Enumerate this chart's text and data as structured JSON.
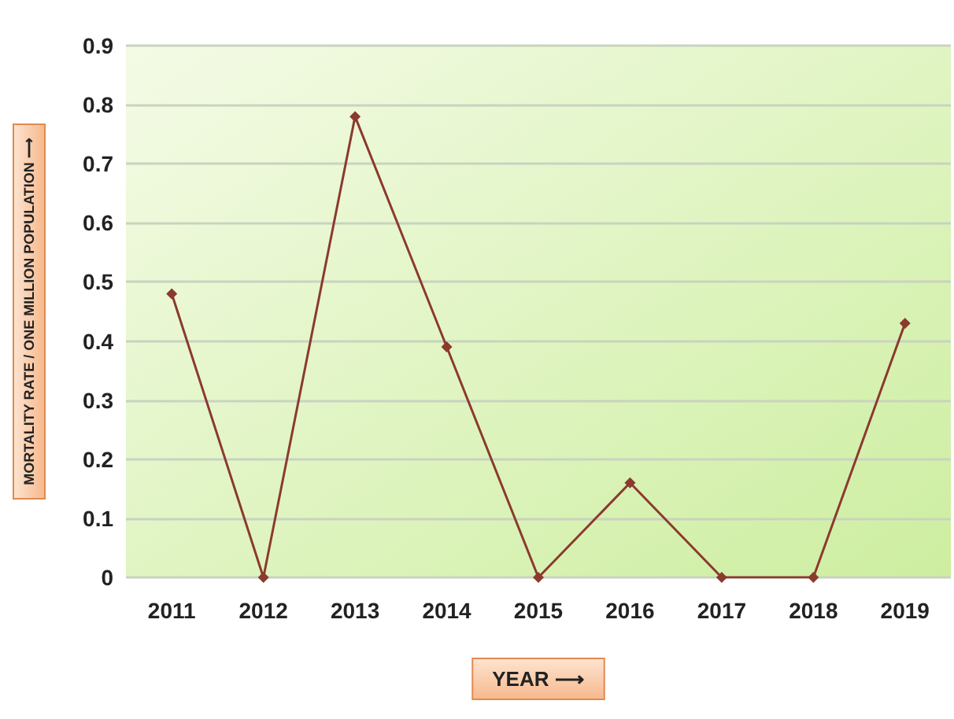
{
  "chart_data": {
    "type": "line",
    "xlabel": "YEAR ⟶",
    "ylabel": "MORTALITY RATE / ONE MILLION POPULATION ⟶",
    "categories": [
      "2011",
      "2012",
      "2013",
      "2014",
      "2015",
      "2016",
      "2017",
      "2018",
      "2019"
    ],
    "series": [
      {
        "color": "#8b3a2e",
        "values": [
          0.48,
          0,
          0.78,
          0.39,
          0,
          0.16,
          0,
          0,
          0.43
        ]
      }
    ],
    "ylim": [
      0,
      0.9
    ],
    "yticks": [
      0,
      0.1,
      0.2,
      0.3,
      0.4,
      0.5,
      0.6,
      0.7,
      0.8,
      0.9
    ],
    "grid": "y",
    "marker": "diamond",
    "line_style": "solid"
  }
}
